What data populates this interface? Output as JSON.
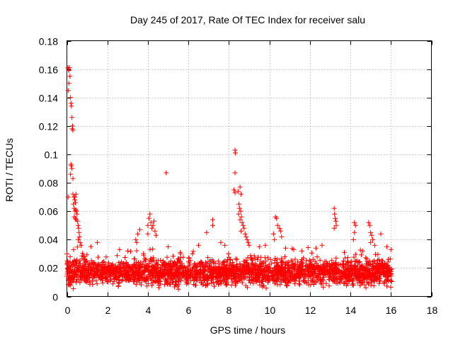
{
  "chart_data": {
    "type": "scatter",
    "title": "Day 245 of 2017, Rate Of TEC Index for receiver salu",
    "xlabel": "GPS time / hours",
    "ylabel": "ROTI / TECUs",
    "xlim": [
      0,
      18
    ],
    "ylim": [
      0,
      0.18
    ],
    "x_ticks": [
      0,
      2,
      4,
      6,
      8,
      10,
      12,
      14,
      16,
      18
    ],
    "y_ticks": [
      0,
      0.02,
      0.04,
      0.06,
      0.08,
      0.1,
      0.12,
      0.14,
      0.16,
      0.18
    ],
    "x_tick_labels": [
      "0",
      "2",
      "4",
      "6",
      "8",
      "10",
      "12",
      "14",
      "16",
      "18"
    ],
    "y_tick_labels": [
      "0",
      "0.02",
      "0.04",
      "0.06",
      "0.08",
      "0.1",
      "0.12",
      "0.14",
      "0.16",
      "0.18"
    ],
    "grid": true,
    "marker": "+",
    "series": [
      {
        "name": "ROTI",
        "color": "#ff0000",
        "points": [
          [
            0.05,
            0.161
          ],
          [
            0.08,
            0.16
          ],
          [
            0.1,
            0.159
          ],
          [
            0.12,
            0.161
          ],
          [
            0.15,
            0.155
          ],
          [
            0.06,
            0.145
          ],
          [
            0.1,
            0.15
          ],
          [
            0.18,
            0.14
          ],
          [
            0.2,
            0.136
          ],
          [
            0.22,
            0.134
          ],
          [
            0.25,
            0.126
          ],
          [
            0.28,
            0.12
          ],
          [
            0.3,
            0.117
          ],
          [
            0.26,
            0.118
          ],
          [
            0.2,
            0.093
          ],
          [
            0.22,
            0.092
          ],
          [
            0.25,
            0.09
          ],
          [
            0.18,
            0.086
          ],
          [
            0.3,
            0.083
          ],
          [
            0.06,
            0.07
          ],
          [
            0.3,
            0.072
          ],
          [
            0.35,
            0.07
          ],
          [
            0.4,
            0.07
          ],
          [
            0.45,
            0.072
          ],
          [
            0.38,
            0.068
          ],
          [
            0.42,
            0.066
          ],
          [
            0.32,
            0.065
          ],
          [
            0.36,
            0.062
          ],
          [
            0.4,
            0.06
          ],
          [
            0.44,
            0.061
          ],
          [
            0.48,
            0.06
          ],
          [
            0.5,
            0.058
          ],
          [
            0.36,
            0.056
          ],
          [
            0.42,
            0.055
          ],
          [
            0.46,
            0.054
          ],
          [
            0.52,
            0.053
          ],
          [
            0.55,
            0.05
          ],
          [
            0.58,
            0.048
          ],
          [
            0.6,
            0.045
          ],
          [
            0.62,
            0.042
          ],
          [
            0.65,
            0.038
          ],
          [
            0.56,
            0.04
          ],
          [
            0.7,
            0.036
          ],
          [
            0.0,
            0.03
          ],
          [
            0.02,
            0.025
          ],
          [
            0.04,
            0.02
          ],
          [
            0.08,
            0.018
          ],
          [
            0.12,
            0.022
          ],
          [
            0.16,
            0.028
          ],
          [
            4.9,
            0.087
          ],
          [
            7.2,
            0.054
          ],
          [
            7.2,
            0.05
          ],
          [
            6.9,
            0.045
          ],
          [
            8.3,
            0.103
          ],
          [
            8.32,
            0.101
          ],
          [
            8.3,
            0.087
          ],
          [
            8.25,
            0.075
          ],
          [
            8.3,
            0.073
          ],
          [
            8.45,
            0.074
          ],
          [
            8.55,
            0.077
          ],
          [
            8.6,
            0.072
          ],
          [
            8.5,
            0.065
          ],
          [
            8.52,
            0.062
          ],
          [
            8.58,
            0.06
          ],
          [
            8.48,
            0.058
          ],
          [
            8.62,
            0.056
          ],
          [
            8.55,
            0.054
          ],
          [
            8.65,
            0.052
          ],
          [
            8.7,
            0.05
          ],
          [
            8.75,
            0.048
          ],
          [
            8.6,
            0.046
          ],
          [
            8.8,
            0.044
          ],
          [
            8.85,
            0.042
          ],
          [
            8.9,
            0.04
          ],
          [
            8.95,
            0.038
          ],
          [
            9.0,
            0.036
          ],
          [
            3.4,
            0.04
          ],
          [
            3.5,
            0.044
          ],
          [
            3.6,
            0.047
          ],
          [
            3.45,
            0.038
          ],
          [
            4.0,
            0.05
          ],
          [
            4.05,
            0.055
          ],
          [
            4.1,
            0.058
          ],
          [
            4.15,
            0.052
          ],
          [
            4.2,
            0.048
          ],
          [
            4.25,
            0.05
          ],
          [
            4.3,
            0.053
          ],
          [
            4.35,
            0.046
          ],
          [
            4.4,
            0.043
          ],
          [
            4.0,
            0.044
          ],
          [
            10.3,
            0.056
          ],
          [
            10.35,
            0.055
          ],
          [
            10.4,
            0.05
          ],
          [
            10.5,
            0.048
          ],
          [
            10.55,
            0.046
          ],
          [
            10.2,
            0.044
          ],
          [
            10.6,
            0.042
          ],
          [
            10.25,
            0.04
          ],
          [
            13.2,
            0.062
          ],
          [
            13.22,
            0.058
          ],
          [
            13.25,
            0.055
          ],
          [
            13.28,
            0.053
          ],
          [
            13.3,
            0.05
          ],
          [
            13.2,
            0.048
          ],
          [
            14.2,
            0.052
          ],
          [
            14.25,
            0.05
          ],
          [
            14.2,
            0.045
          ],
          [
            14.15,
            0.04
          ],
          [
            14.9,
            0.052
          ],
          [
            14.95,
            0.05
          ],
          [
            15.0,
            0.045
          ],
          [
            15.05,
            0.043
          ],
          [
            15.1,
            0.04
          ],
          [
            15.0,
            0.038
          ],
          [
            15.5,
            0.044
          ],
          [
            15.2,
            0.036
          ],
          [
            5.0,
            0.035
          ],
          [
            6.5,
            0.036
          ],
          [
            7.6,
            0.038
          ],
          [
            7.8,
            0.036
          ],
          [
            9.5,
            0.035
          ],
          [
            12.3,
            0.034
          ],
          [
            12.6,
            0.036
          ],
          [
            11.2,
            0.033
          ],
          [
            16.0,
            0.033
          ],
          [
            1.5,
            0.038
          ],
          [
            2.6,
            0.033
          ],
          [
            3.0,
            0.032
          ],
          [
            5.6,
            0.031
          ],
          [
            6.2,
            0.03
          ],
          [
            9.8,
            0.036
          ],
          [
            10.8,
            0.034
          ],
          [
            11.6,
            0.032
          ],
          [
            13.7,
            0.031
          ],
          [
            14.6,
            0.032
          ],
          [
            15.8,
            0.035
          ]
        ],
        "band": {
          "x_range": [
            0,
            16.05
          ],
          "y_center": 0.017,
          "y_spread": 0.008,
          "count": 2600
        }
      }
    ]
  }
}
